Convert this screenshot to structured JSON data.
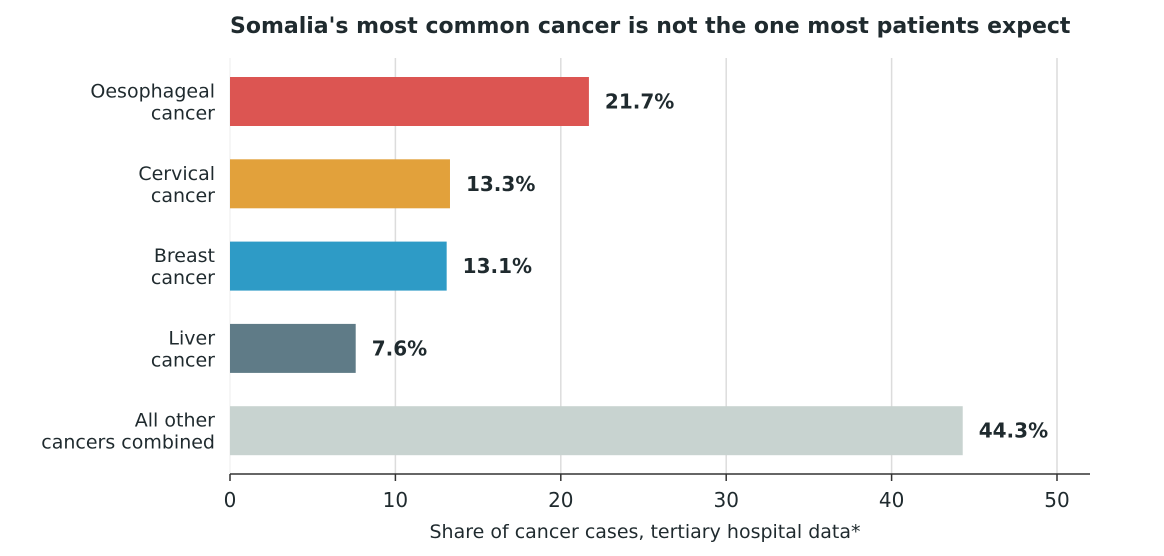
{
  "chart_data": {
    "type": "bar",
    "orientation": "horizontal",
    "title": "Somalia's most common cancer is not the one most patients expect",
    "xlabel": "Share of cancer cases, tertiary hospital data*",
    "ylabel": "",
    "xlim": [
      0,
      52
    ],
    "xticks": [
      0,
      10,
      20,
      30,
      40,
      50
    ],
    "grid": "vertical",
    "categories": [
      [
        "Oesophageal",
        "cancer"
      ],
      [
        "Cervical",
        "cancer"
      ],
      [
        "Breast",
        "cancer"
      ],
      [
        "Liver",
        "cancer"
      ],
      [
        "All other",
        "cancers combined"
      ]
    ],
    "values": [
      21.7,
      13.3,
      13.1,
      7.6,
      44.3
    ],
    "value_labels": [
      "21.7%",
      "13.3%",
      "13.1%",
      "7.6%",
      "44.3%"
    ],
    "colors": [
      "#dc5552",
      "#e2a13b",
      "#2e9bc6",
      "#5f7b87",
      "#c8d3d0"
    ]
  }
}
